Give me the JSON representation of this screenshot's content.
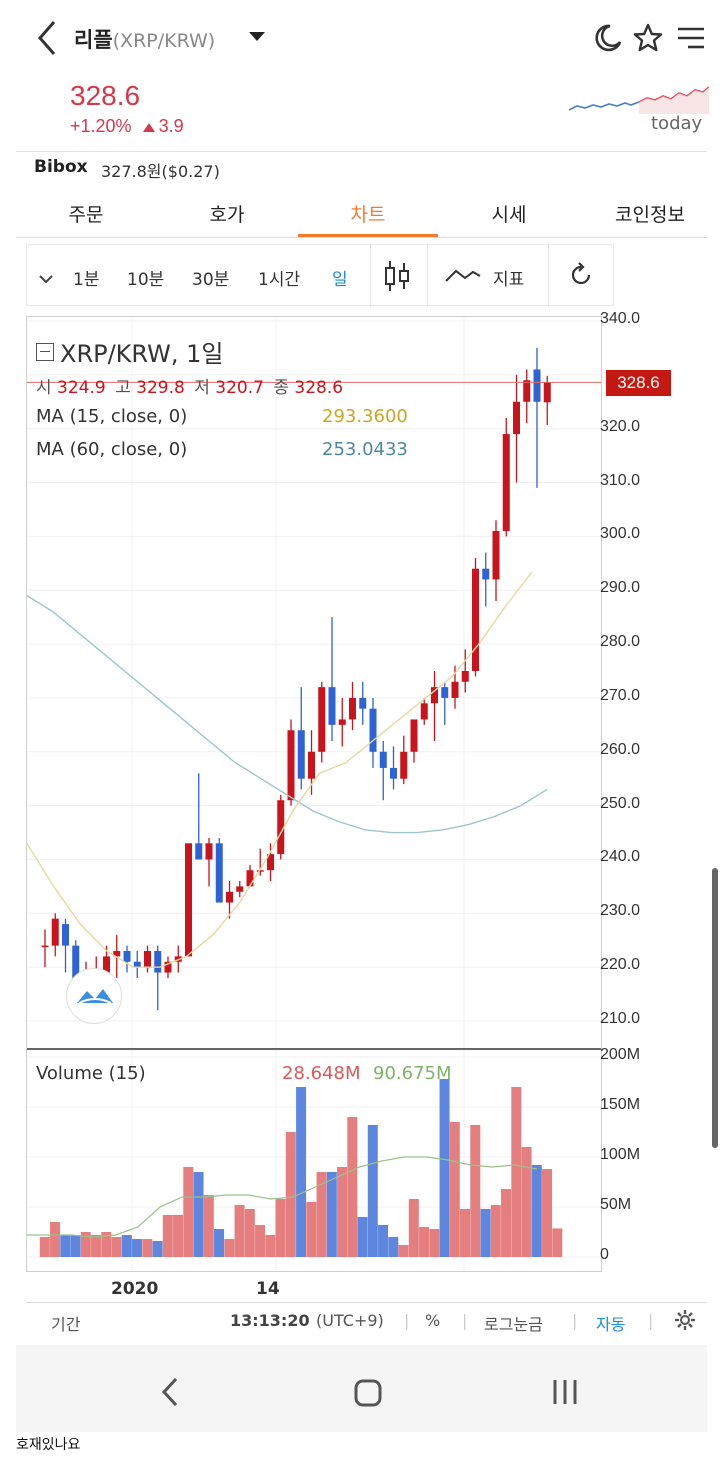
{
  "header": {
    "name_kr": "리플",
    "pair": "(XRP/KRW)"
  },
  "quote": {
    "price": "328.6",
    "change_pct": "+1.20%",
    "change_abs": "3.9",
    "today_label": "today"
  },
  "exchange": {
    "name": "Bibox",
    "price": "327.8원($0.27)"
  },
  "tabs": [
    {
      "label": "주문"
    },
    {
      "label": "호가"
    },
    {
      "label": "차트",
      "active": true
    },
    {
      "label": "시세"
    },
    {
      "label": "코인정보"
    }
  ],
  "toolbar": {
    "intervals": [
      "1분",
      "10분",
      "30분",
      "1시간",
      "일"
    ],
    "active_interval": "일",
    "indicator_label": "지표"
  },
  "chart": {
    "title": "XRP/KRW, 1일",
    "ohlc": {
      "open_label": "시",
      "open": "324.9",
      "high_label": "고",
      "high": "329.8",
      "low_label": "저",
      "low": "320.7",
      "close_label": "종",
      "close": "328.6"
    },
    "ma15": {
      "label": "MA (15, close, 0)",
      "value": "293.3600",
      "color": "#c8a628"
    },
    "ma60": {
      "label": "MA (60, close, 0)",
      "value": "253.0433",
      "color": "#5a8fa0"
    },
    "price_tag": "328.6",
    "y_ticks": [
      "340.0",
      "320.0",
      "310.0",
      "300.0",
      "290.0",
      "280.0",
      "270.0",
      "260.0",
      "250.0",
      "240.0",
      "230.0",
      "220.0",
      "210.0"
    ],
    "volume": {
      "label": "Volume (15)",
      "val1": "28.648M",
      "val2": "90.675M",
      "ticks": [
        "200M",
        "150M",
        "100M",
        "50M",
        "0"
      ]
    },
    "x_labels": [
      "2020",
      "14"
    ],
    "up_color": "#c8141c",
    "down_color": "#2d63d3"
  },
  "bottom": {
    "period": "기간",
    "time": "13:13:20",
    "tz": "(UTC+9)",
    "pct": "%",
    "log": "로그눈금",
    "auto": "자동"
  },
  "caption": "호재있나요"
}
